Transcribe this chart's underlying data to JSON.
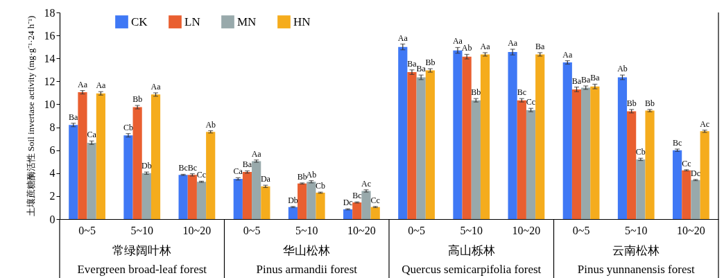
{
  "chart_data": {
    "type": "bar",
    "categories": [
      "0~5",
      "5~10",
      "10~20",
      "0~5",
      "5~10",
      "10~20",
      "0~5",
      "5~10",
      "10~20",
      "0~5",
      "5~10",
      "10~20"
    ],
    "ylabel": "土壤蔗糖酶活性 Soil invertase activity (mg·g⁻¹·24 h⁻¹)",
    "ylim": [
      0,
      18
    ],
    "yticks": [
      0,
      2,
      4,
      6,
      8,
      10,
      12,
      14,
      16,
      18
    ],
    "legend": "top left",
    "grid": false,
    "series": [
      {
        "name": "CK",
        "color": "#3f78f5",
        "values": [
          8.2,
          7.3,
          3.85,
          3.5,
          1.05,
          0.85,
          15.0,
          14.7,
          14.55,
          13.65,
          12.35,
          6.0
        ],
        "errors": [
          0.15,
          0.15,
          0.05,
          0.1,
          0.05,
          0.05,
          0.25,
          0.25,
          0.25,
          0.15,
          0.2,
          0.1
        ],
        "value_labels": [
          "Ba",
          "Cb",
          "Bc",
          "Ca",
          "Db",
          "Dc",
          "Aa",
          "Aa",
          "Aa",
          "Aa",
          "Ab",
          "Bc"
        ]
      },
      {
        "name": "LN",
        "color": "#e95f30",
        "values": [
          11.05,
          9.75,
          3.85,
          4.1,
          3.1,
          1.45,
          12.8,
          14.15,
          10.35,
          11.3,
          9.4,
          4.25
        ],
        "errors": [
          0.15,
          0.15,
          0.1,
          0.1,
          0.05,
          0.05,
          0.2,
          0.2,
          0.15,
          0.2,
          0.15,
          0.05
        ],
        "value_labels": [
          "Aa",
          "Bb",
          "Bc",
          "Ba",
          "Bb",
          "Bc",
          "Ba",
          "Ab",
          "Bc",
          "Ba",
          "Bb",
          "Cc"
        ]
      },
      {
        "name": "MN",
        "color": "#98a9ab",
        "values": [
          6.65,
          4.0,
          3.25,
          5.05,
          3.25,
          2.45,
          12.35,
          10.35,
          9.5,
          11.45,
          5.2,
          3.4
        ],
        "errors": [
          0.15,
          0.1,
          0.05,
          0.1,
          0.1,
          0.1,
          0.2,
          0.15,
          0.15,
          0.15,
          0.1,
          0.05
        ],
        "value_labels": [
          "Ca",
          "Db",
          "Cc",
          "Aa",
          "Ab",
          "Ac",
          "Ba",
          "Bb",
          "Cc",
          "Ba",
          "Cb",
          "Dc"
        ]
      },
      {
        "name": "HN",
        "color": "#f5ac1d",
        "values": [
          10.95,
          10.85,
          7.6,
          2.85,
          2.3,
          1.05,
          12.95,
          14.35,
          14.35,
          11.55,
          9.45,
          7.65
        ],
        "errors": [
          0.15,
          0.15,
          0.1,
          0.1,
          0.05,
          0.05,
          0.15,
          0.15,
          0.15,
          0.2,
          0.1,
          0.1
        ],
        "value_labels": [
          "Aa",
          "Aa",
          "Ab",
          "Da",
          "Cb",
          "Cc",
          "Bb",
          "Aa",
          "Ba",
          "Ba",
          "Bb",
          "Ac"
        ]
      }
    ],
    "annotations": [
      "常绿阔叶林",
      "Evergreen broad-leaf forest",
      "华山松林",
      "Pinus armandii forest",
      "高山栎林",
      "Quercus semicarpifolia forest",
      "云南松林",
      "Pinus yunnanensis forest"
    ]
  }
}
